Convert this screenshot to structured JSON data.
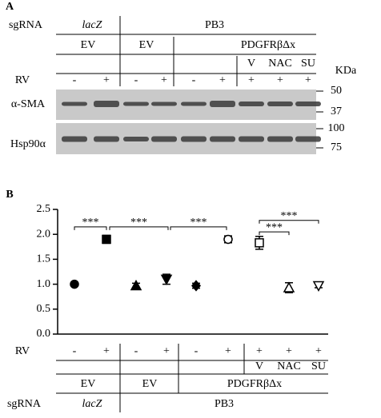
{
  "panel_a": {
    "label": "A",
    "sgrna_label": "sgRNA",
    "lacz": "lacZ",
    "pb3": "PB3",
    "ev_lacz": "EV",
    "ev_pb3": "EV",
    "construct": "PDGFRβΔx",
    "treatments": [
      "V",
      "NAC",
      "SU"
    ],
    "rv_label": "RV",
    "rv": [
      "-",
      "+",
      "-",
      "+",
      "-",
      "+",
      "+",
      "+",
      "+"
    ],
    "unit": "KDa",
    "blots": [
      {
        "name": "α-SMA",
        "markers": [
          50,
          37
        ]
      },
      {
        "name": "Hsp90α",
        "markers": [
          100,
          75
        ]
      }
    ]
  },
  "panel_b": {
    "label": "B",
    "rv_label": "RV",
    "treatments": [
      "V",
      "NAC",
      "SU"
    ],
    "ev_lacz": "EV",
    "ev_pb3": "EV",
    "construct": "PDGFRβΔx",
    "sgrna_label": "sgRNA",
    "lacz": "lacZ",
    "pb3": "PB3"
  },
  "chart_data": {
    "type": "point",
    "categories": [
      "-",
      "+",
      "-",
      "+",
      "-",
      "+",
      "+",
      "+",
      "+"
    ],
    "series": [
      {
        "color": "#000000",
        "values": [
          1.0,
          1.9,
          0.97,
          1.1,
          0.97,
          1.9,
          1.83,
          0.93,
          0.97
        ],
        "errors": [
          0.0,
          0.08,
          0.05,
          0.1,
          0.05,
          0.07,
          0.13,
          0.1,
          0.04
        ],
        "markers": [
          "circle-filled",
          "square-filled",
          "triangle-up-filled",
          "triangle-down-filled",
          "diamond-filled",
          "circle-open",
          "square-open",
          "triangle-up-open",
          "triangle-down-open"
        ]
      }
    ],
    "ylim": [
      0,
      2.5
    ],
    "yticks": [
      {
        "value": 0,
        "label": "0.0"
      },
      0.5,
      {
        "value": 1,
        "label": "1.0"
      },
      1.5,
      {
        "value": 2,
        "label": "2.0"
      },
      2.5
    ],
    "annotations": [
      "***",
      "***",
      "***",
      "***",
      "***"
    ],
    "grid": false
  }
}
